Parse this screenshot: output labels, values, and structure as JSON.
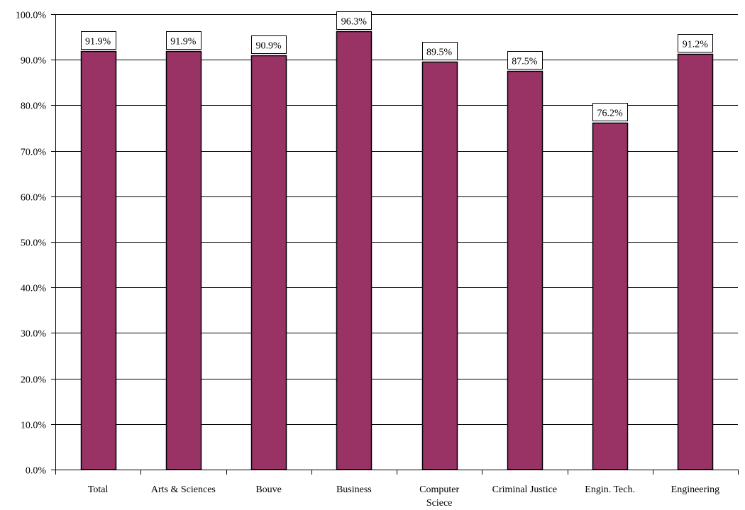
{
  "chart_data": {
    "type": "bar",
    "categories": [
      [
        "Total"
      ],
      [
        "Arts & Sciences"
      ],
      [
        "Bouve"
      ],
      [
        "Business"
      ],
      [
        "Computer",
        "Sciece"
      ],
      [
        "Criminal Justice"
      ],
      [
        "Engin. Tech."
      ],
      [
        "Engineering"
      ]
    ],
    "values": [
      91.9,
      91.9,
      90.9,
      96.3,
      89.5,
      87.5,
      76.2,
      91.2
    ],
    "data_labels": [
      "91.9%",
      "91.9%",
      "90.9%",
      "96.3%",
      "89.5%",
      "87.5%",
      "76.2%",
      "91.2%"
    ],
    "ylim": [
      0,
      100
    ],
    "y_ticks": [
      0,
      10,
      20,
      30,
      40,
      50,
      60,
      70,
      80,
      90,
      100
    ],
    "y_tick_labels": [
      "0.0%",
      "10.0%",
      "20.0%",
      "30.0%",
      "40.0%",
      "50.0%",
      "60.0%",
      "70.0%",
      "80.0%",
      "90.0%",
      "100.0%"
    ],
    "grid": true,
    "legend": "none",
    "colors": {
      "bar_fill": "#993366",
      "bar_stroke": "#000000",
      "grid": "#000000",
      "axis": "#000000",
      "label_box_fill": "#ffffff",
      "label_box_stroke": "#000000"
    }
  }
}
